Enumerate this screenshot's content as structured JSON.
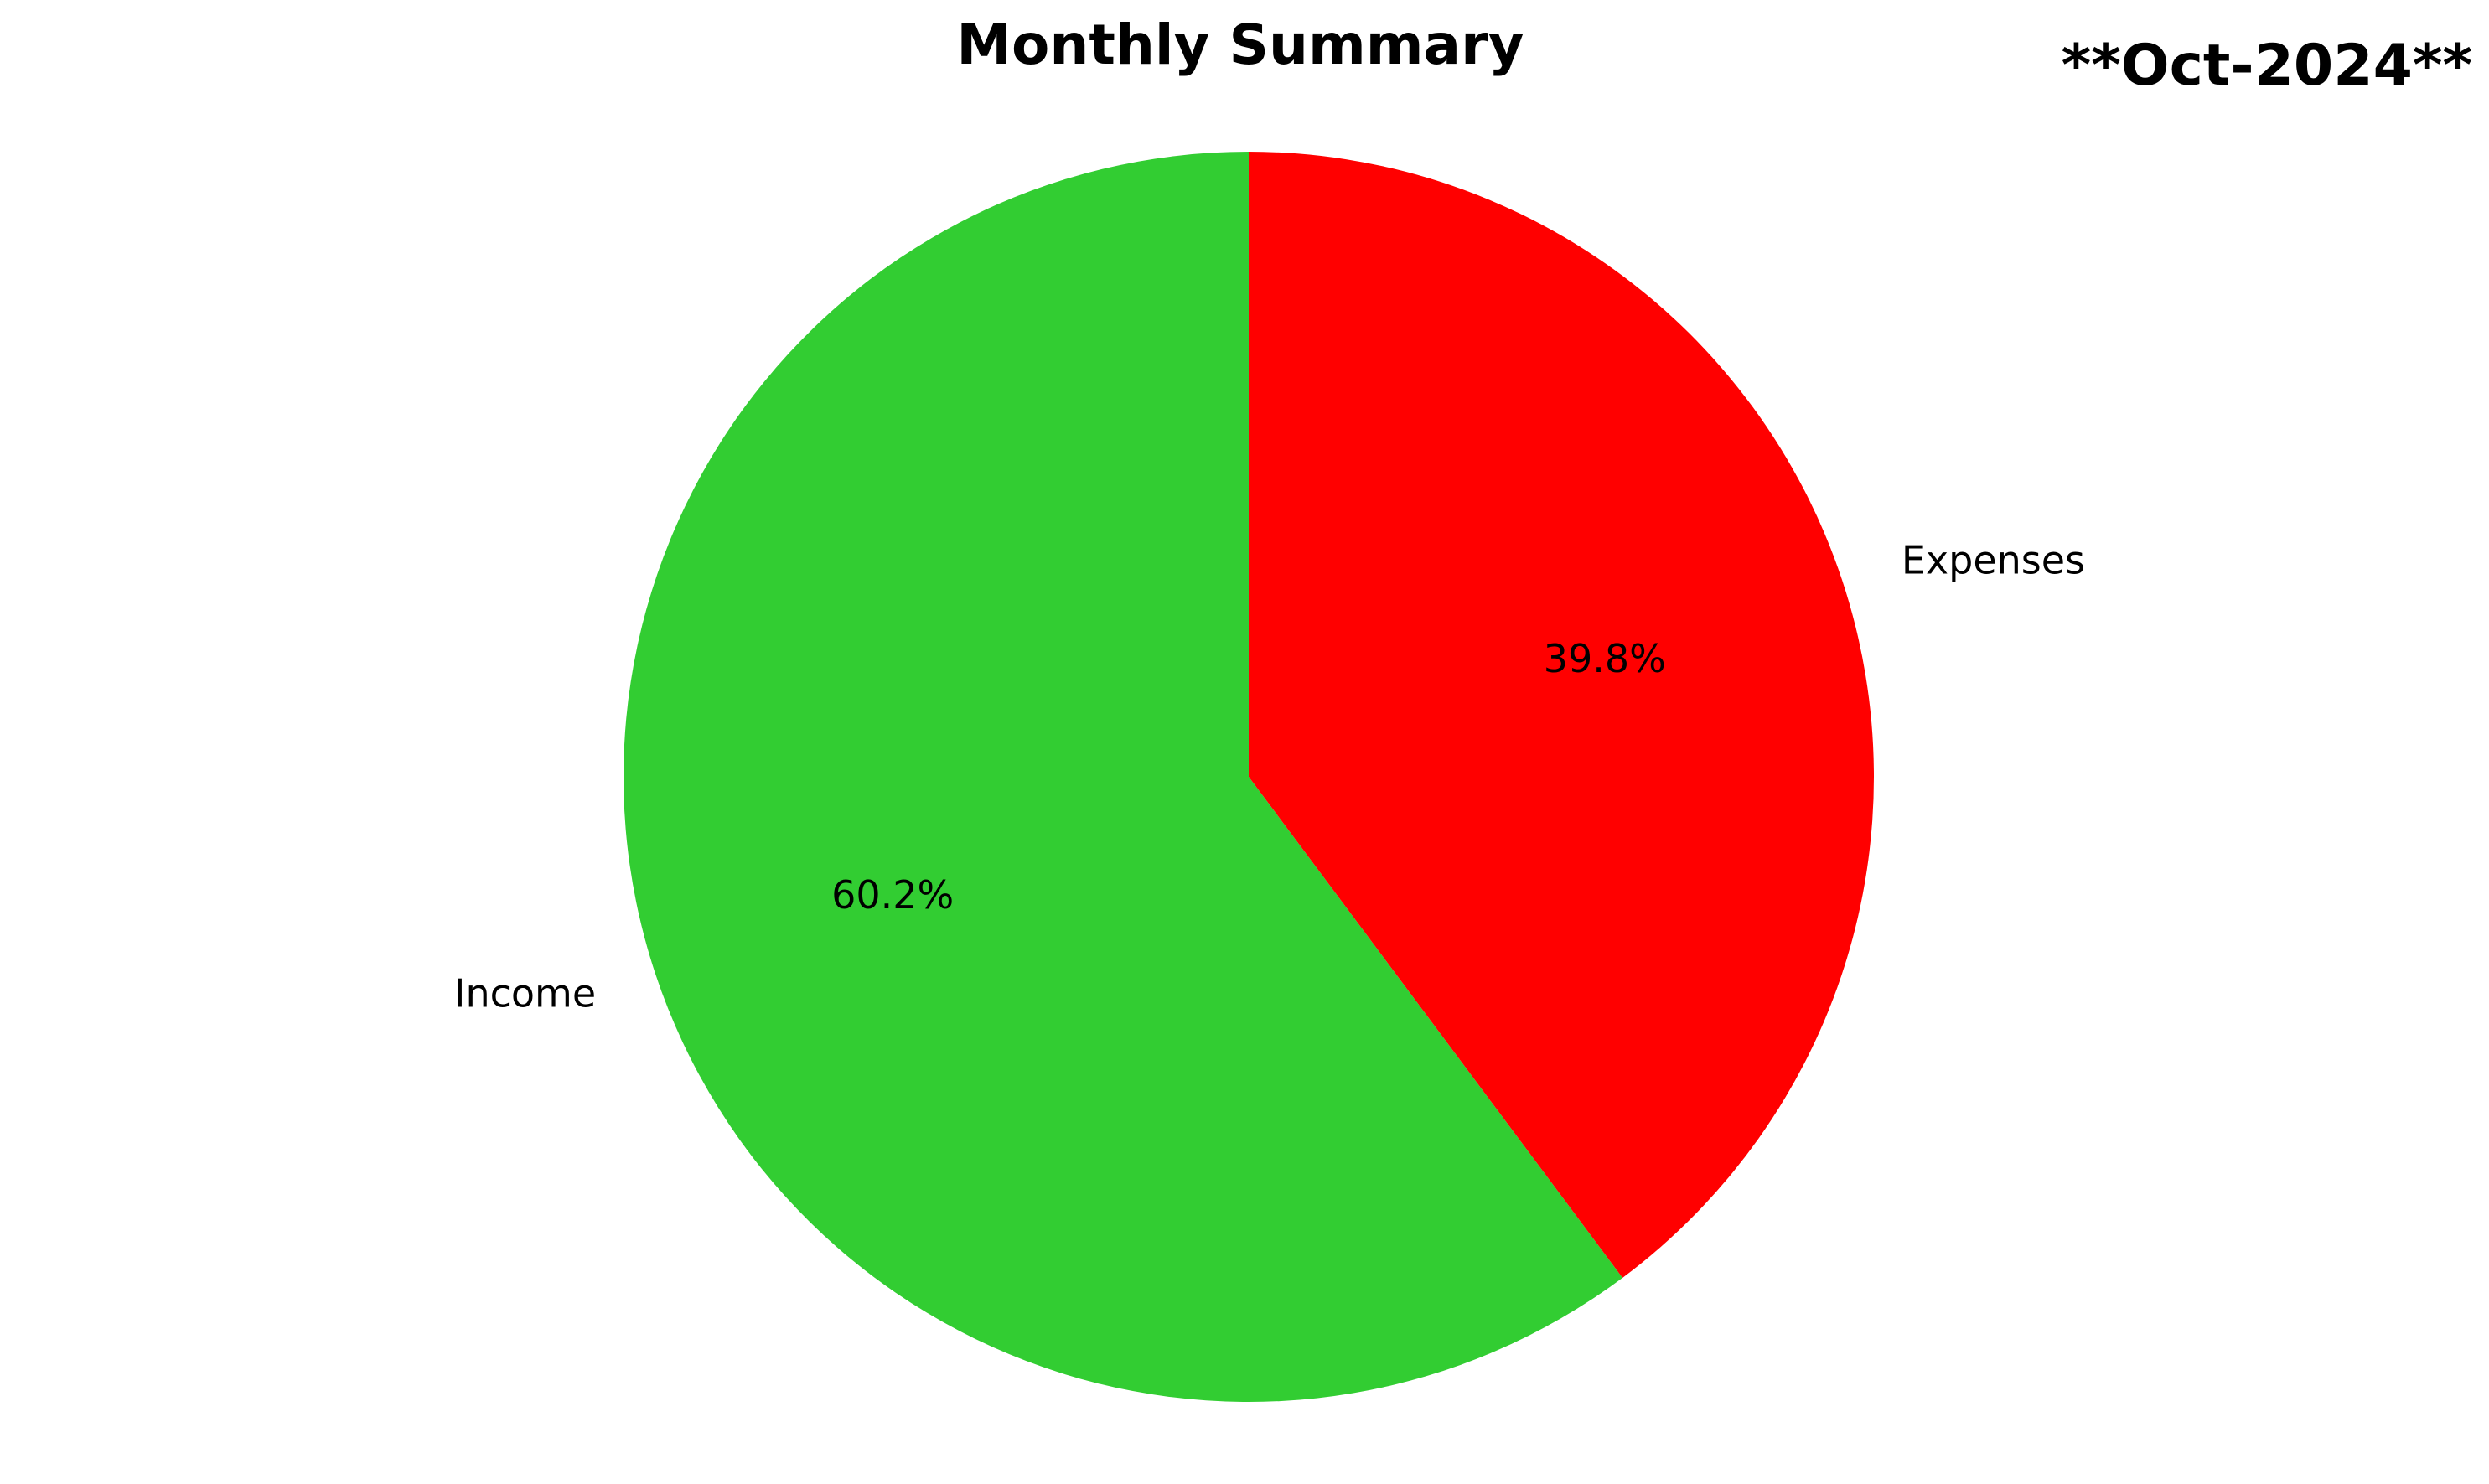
{
  "chart_data": {
    "type": "pie",
    "title": "Monthly Summary",
    "annotation": "**Oct-2024**",
    "start_angle_deg": 90,
    "direction": "clockwise",
    "legend": "none",
    "slices": [
      {
        "label": "Expenses",
        "value": 39.8,
        "pct_label": "39.8%",
        "color": "#ff0000"
      },
      {
        "label": "Income",
        "value": 60.2,
        "pct_label": "60.2%",
        "color": "#32cd32"
      }
    ]
  }
}
